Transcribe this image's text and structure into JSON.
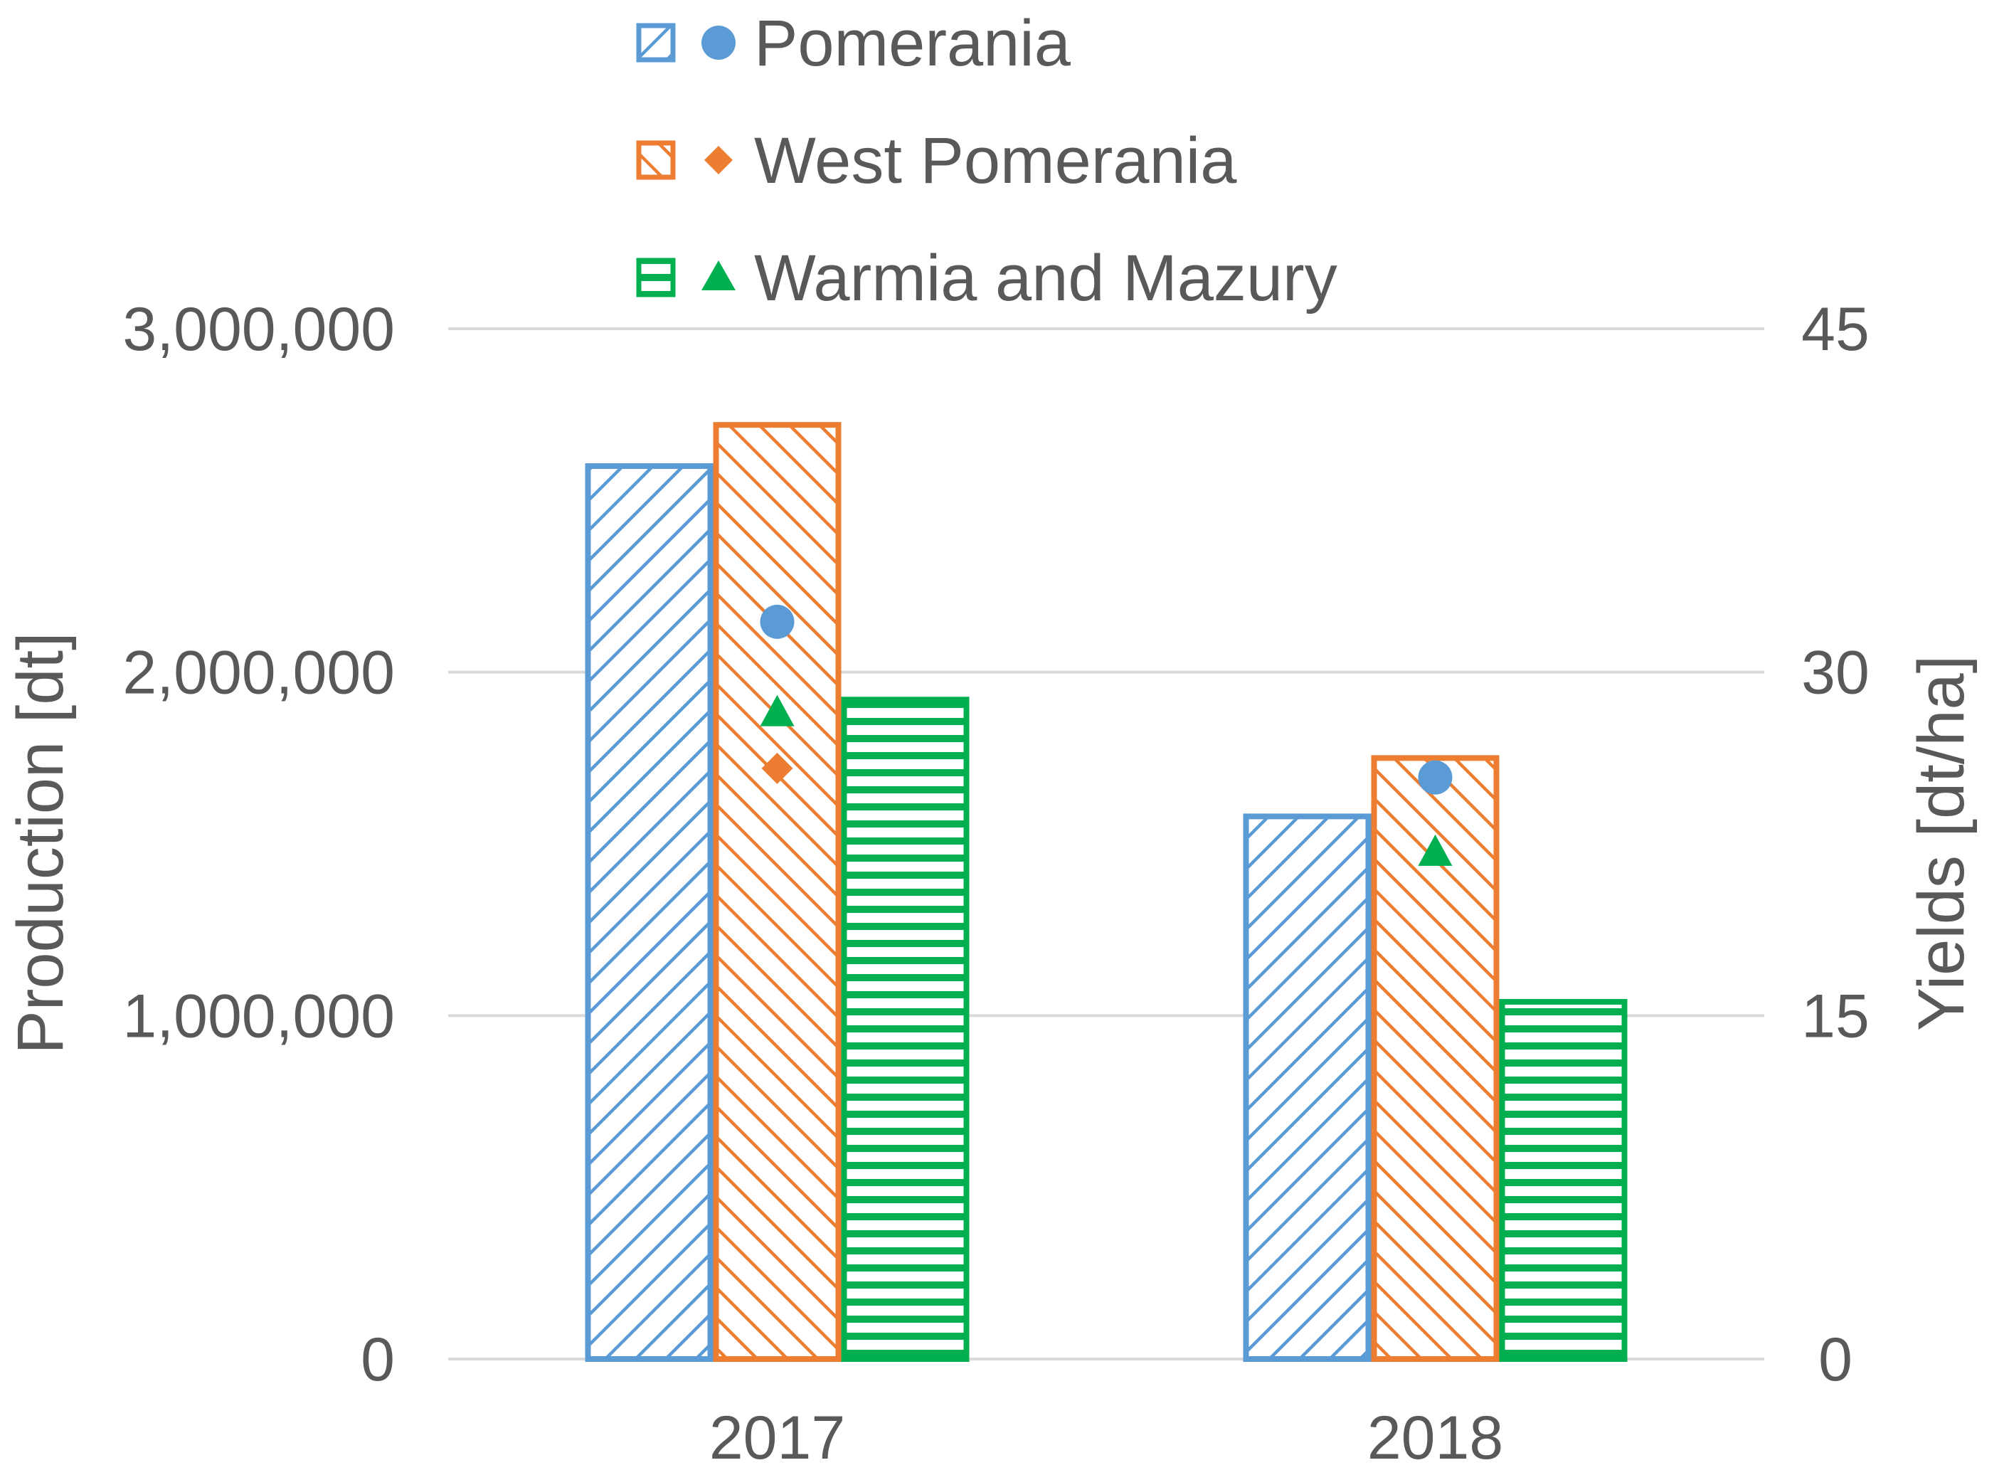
{
  "chart_data": {
    "type": "bar",
    "categories": [
      "2017",
      "2018"
    ],
    "left_axis": {
      "label": "Production  [dt]",
      "ylim": [
        0,
        3000000
      ],
      "ticks": [
        0,
        1000000,
        2000000,
        3000000
      ],
      "tick_labels": [
        "0",
        "1,000,000",
        "2,000,000",
        "3,000,000"
      ]
    },
    "right_axis": {
      "label": "Yields  [dt/ha]",
      "ylim": [
        0,
        45
      ],
      "ticks": [
        0,
        15,
        30,
        45
      ],
      "tick_labels": [
        "0",
        "15",
        "30",
        "45"
      ]
    },
    "grid": true,
    "legend_position": "top",
    "series": [
      {
        "name": "Pomerania",
        "color": "#5B9BD5",
        "bar_pattern": "diagonal-up",
        "marker": "circle",
        "production": [
          2600000,
          1580000
        ],
        "yields": [
          32.2,
          25.4
        ]
      },
      {
        "name": "West Pomerania",
        "color": "#ED7D31",
        "bar_pattern": "diagonal-down",
        "marker": "diamond",
        "production": [
          2720000,
          1750000
        ],
        "yields": [
          25.8,
          null
        ]
      },
      {
        "name": "Warmia and Mazury",
        "color": "#00B050",
        "bar_pattern": "horizontal",
        "marker": "triangle",
        "production": [
          1920000,
          1040000
        ],
        "yields": [
          28.2,
          22.1
        ]
      }
    ]
  }
}
